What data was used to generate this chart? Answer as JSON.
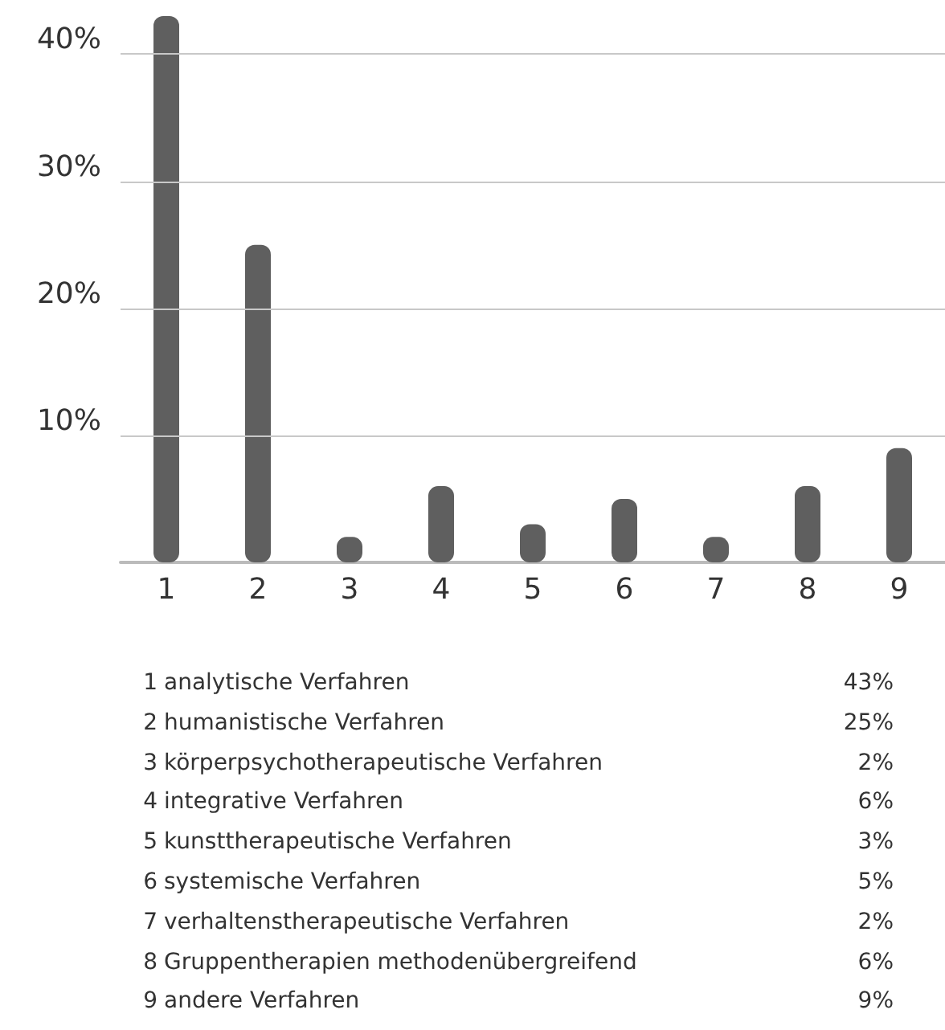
{
  "chart_data": {
    "type": "bar",
    "categories": [
      "1",
      "2",
      "3",
      "4",
      "5",
      "6",
      "7",
      "8",
      "9"
    ],
    "values": [
      43,
      25,
      2,
      6,
      3,
      5,
      2,
      6,
      9
    ],
    "color": "#5f5f5f",
    "ylim": [
      0,
      43
    ],
    "yticks": [
      {
        "value": 10,
        "label": "10%"
      },
      {
        "value": 20,
        "label": "20%"
      },
      {
        "value": 30,
        "label": "30%"
      },
      {
        "value": 40,
        "label": "40%"
      }
    ],
    "grid": "y",
    "annotations": [
      "1",
      "analytische Verfahren",
      "43%",
      "2",
      "humanistische Verfahren",
      "25%",
      "3",
      "körperpsychotherapeutische Verfahren",
      "2%",
      "4",
      "integrative Verfahren",
      "6%",
      "5",
      "kunsttherapeutische Verfahren",
      "3%",
      "6",
      "systemische Verfahren",
      "5%",
      "7",
      "verhaltenstherapeutische Verfahren",
      "2%",
      "8",
      "Gruppentherapien methodenübergreifend",
      "6%",
      "9",
      "andere Verfahren",
      "9%"
    ]
  }
}
